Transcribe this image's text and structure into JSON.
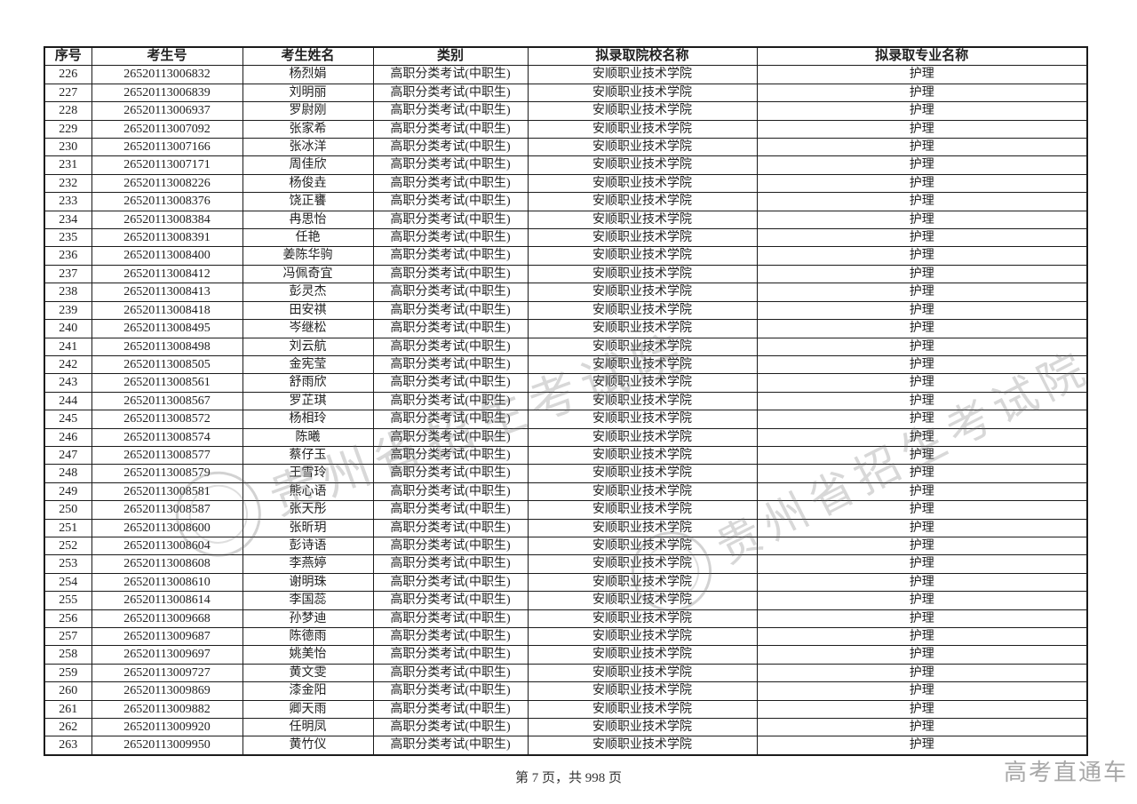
{
  "table": {
    "headers": [
      "序号",
      "考生号",
      "考生姓名",
      "类别",
      "拟录取院校名称",
      "拟录取专业名称"
    ],
    "repeated": {
      "category": "高职分类考试(中职生)",
      "college": "安顺职业技术学院",
      "major": "护理"
    },
    "rows": [
      [
        "226",
        "26520113006832",
        "杨烈娟"
      ],
      [
        "227",
        "26520113006839",
        "刘明丽"
      ],
      [
        "228",
        "26520113006937",
        "罗尉刚"
      ],
      [
        "229",
        "26520113007092",
        "张家希"
      ],
      [
        "230",
        "26520113007166",
        "张冰洋"
      ],
      [
        "231",
        "26520113007171",
        "周佳欣"
      ],
      [
        "232",
        "26520113008226",
        "杨俊垚"
      ],
      [
        "233",
        "26520113008376",
        "饶正饔"
      ],
      [
        "234",
        "26520113008384",
        "冉思怡"
      ],
      [
        "235",
        "26520113008391",
        "任艳"
      ],
      [
        "236",
        "26520113008400",
        "姜陈华驹"
      ],
      [
        "237",
        "26520113008412",
        "冯佩奇宜"
      ],
      [
        "238",
        "26520113008413",
        "彭灵杰"
      ],
      [
        "239",
        "26520113008418",
        "田安祺"
      ],
      [
        "240",
        "26520113008495",
        "岑继松"
      ],
      [
        "241",
        "26520113008498",
        "刘云航"
      ],
      [
        "242",
        "26520113008505",
        "金宪莹"
      ],
      [
        "243",
        "26520113008561",
        "舒雨欣"
      ],
      [
        "244",
        "26520113008567",
        "罗芷琪"
      ],
      [
        "245",
        "26520113008572",
        "杨相玲"
      ],
      [
        "246",
        "26520113008574",
        "陈曦"
      ],
      [
        "247",
        "26520113008577",
        "蔡仔玉"
      ],
      [
        "248",
        "26520113008579",
        "王雪玲"
      ],
      [
        "249",
        "26520113008581",
        "熊心语"
      ],
      [
        "250",
        "26520113008587",
        "张天彤"
      ],
      [
        "251",
        "26520113008600",
        "张昕玥"
      ],
      [
        "252",
        "26520113008604",
        "彭诗语"
      ],
      [
        "253",
        "26520113008608",
        "李燕婷"
      ],
      [
        "254",
        "26520113008610",
        "谢明珠"
      ],
      [
        "255",
        "26520113008614",
        "李国蕊"
      ],
      [
        "256",
        "26520113009668",
        "孙梦迪"
      ],
      [
        "257",
        "26520113009687",
        "陈德雨"
      ],
      [
        "258",
        "26520113009697",
        "姚美怡"
      ],
      [
        "259",
        "26520113009727",
        "黄文雯"
      ],
      [
        "260",
        "26520113009869",
        "漆金阳"
      ],
      [
        "261",
        "26520113009882",
        "卿天雨"
      ],
      [
        "262",
        "26520113009920",
        "任明凤"
      ],
      [
        "263",
        "26520113009950",
        "黄竹仪"
      ]
    ]
  },
  "watermark": {
    "text": "贵州省招生考试院"
  },
  "footer": {
    "page_info": "第 7 页，共 998 页"
  },
  "brand": {
    "label": "高考直通车"
  }
}
